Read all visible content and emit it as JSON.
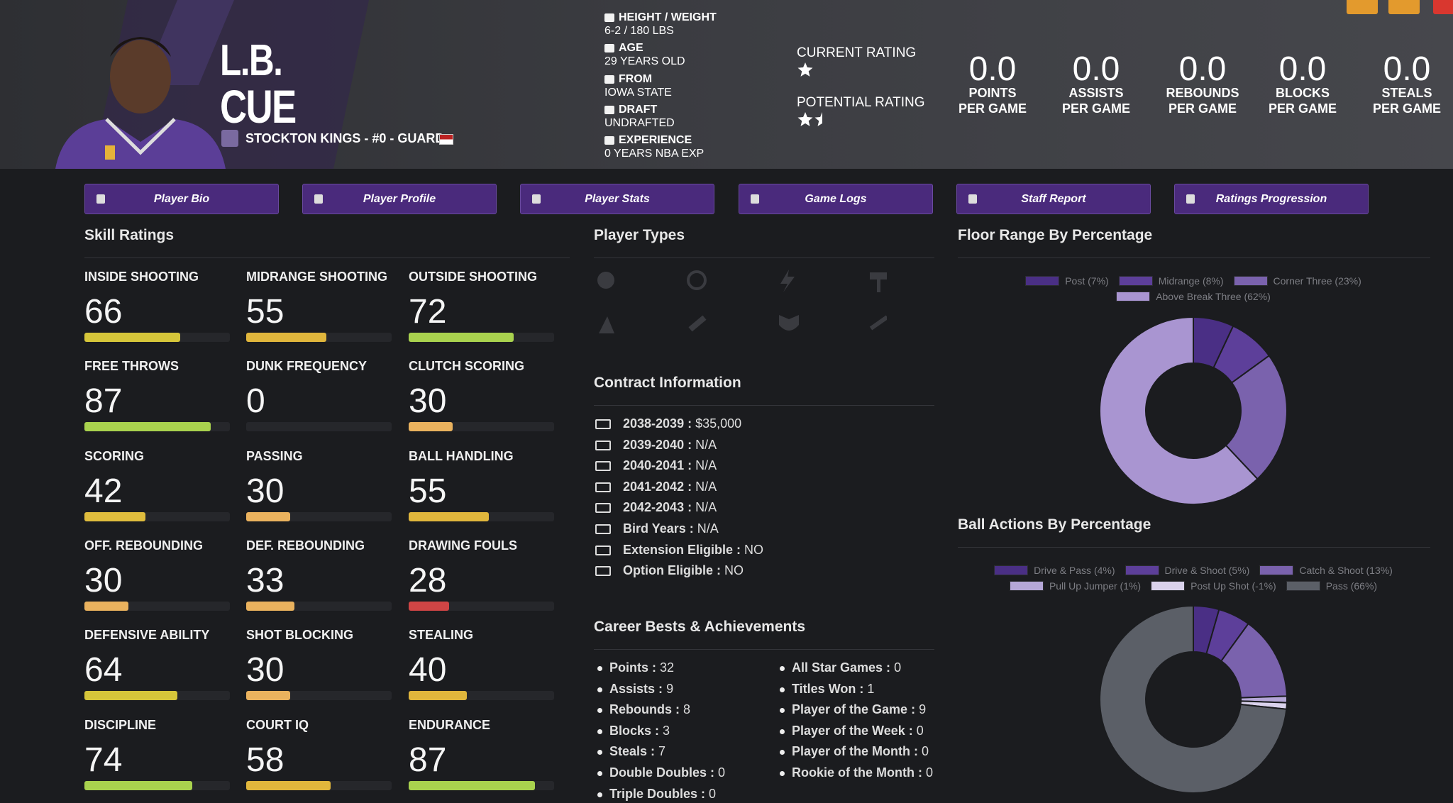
{
  "player": {
    "first_name": "L.B.",
    "last_name": "CUE",
    "team_line": "STOCKTON KINGS - #0 - GUARD",
    "info": [
      {
        "label": "HEIGHT / WEIGHT",
        "value": "6-2 / 180 LBS"
      },
      {
        "label": "AGE",
        "value": "29 YEARS OLD"
      },
      {
        "label": "FROM",
        "value": "IOWA STATE"
      },
      {
        "label": "DRAFT",
        "value": "UNDRAFTED"
      },
      {
        "label": "EXPERIENCE",
        "value": "0 YEARS NBA EXP"
      }
    ],
    "current_rating_label": "CURRENT RATING",
    "current_rating_stars": 1,
    "potential_rating_label": "POTENTIAL RATING",
    "potential_rating_stars": 1.5,
    "stats": [
      {
        "value": "0.0",
        "label_1": "POINTS",
        "label_2": "PER GAME"
      },
      {
        "value": "0.0",
        "label_1": "ASSISTS",
        "label_2": "PER GAME"
      },
      {
        "value": "0.0",
        "label_1": "REBOUNDS",
        "label_2": "PER GAME"
      },
      {
        "value": "0.0",
        "label_1": "BLOCKS",
        "label_2": "PER GAME"
      },
      {
        "value": "0.0",
        "label_1": "STEALS",
        "label_2": "PER GAME"
      }
    ]
  },
  "nav": [
    "Player Bio",
    "Player Profile",
    "Player Stats",
    "Game Logs",
    "Staff Report",
    "Ratings Progression"
  ],
  "skill_ratings": {
    "title": "Skill Ratings",
    "scale_max": 100,
    "items": [
      {
        "label": "INSIDE SHOOTING",
        "value": 66,
        "color": "#d6c63a"
      },
      {
        "label": "MIDRANGE SHOOTING",
        "value": 55,
        "color": "#e0b63c"
      },
      {
        "label": "OUTSIDE SHOOTING",
        "value": 72,
        "color": "#a9d24e"
      },
      {
        "label": "FREE THROWS",
        "value": 87,
        "color": "#a9d24e"
      },
      {
        "label": "DUNK FREQUENCY",
        "value": 0,
        "color": "#d04545"
      },
      {
        "label": "CLUTCH SCORING",
        "value": 30,
        "color": "#eab25e"
      },
      {
        "label": "SCORING",
        "value": 42,
        "color": "#dfbc3d"
      },
      {
        "label": "PASSING",
        "value": 30,
        "color": "#eab25e"
      },
      {
        "label": "BALL HANDLING",
        "value": 55,
        "color": "#e0b63c"
      },
      {
        "label": "OFF. REBOUNDING",
        "value": 30,
        "color": "#eab25e"
      },
      {
        "label": "DEF. REBOUNDING",
        "value": 33,
        "color": "#eab25e"
      },
      {
        "label": "DRAWING FOULS",
        "value": 28,
        "color": "#d04545"
      },
      {
        "label": "DEFENSIVE ABILITY",
        "value": 64,
        "color": "#d6c63a"
      },
      {
        "label": "SHOT BLOCKING",
        "value": 30,
        "color": "#eab25e"
      },
      {
        "label": "STEALING",
        "value": 40,
        "color": "#e0b63c"
      },
      {
        "label": "DISCIPLINE",
        "value": 74,
        "color": "#a9d24e"
      },
      {
        "label": "COURT IQ",
        "value": 58,
        "color": "#e0b63c"
      },
      {
        "label": "ENDURANCE",
        "value": 87,
        "color": "#a9d24e"
      }
    ]
  },
  "player_types": {
    "title": "Player Types"
  },
  "contract": {
    "title": "Contract Information",
    "rows": [
      {
        "label": "2038-2039 :",
        "value": "$35,000"
      },
      {
        "label": "2039-2040 :",
        "value": "N/A"
      },
      {
        "label": "2040-2041 :",
        "value": "N/A"
      },
      {
        "label": "2041-2042 :",
        "value": "N/A"
      },
      {
        "label": "2042-2043 :",
        "value": "N/A"
      },
      {
        "label": "Bird Years :",
        "value": "N/A"
      },
      {
        "label": "Extension Eligible :",
        "value": "NO"
      },
      {
        "label": "Option Eligible :",
        "value": "NO"
      }
    ]
  },
  "career": {
    "title": "Career Bests & Achievements",
    "left": [
      {
        "label": "Points :",
        "value": 32
      },
      {
        "label": "Assists :",
        "value": 9
      },
      {
        "label": "Rebounds :",
        "value": 8
      },
      {
        "label": "Blocks :",
        "value": 3
      },
      {
        "label": "Steals :",
        "value": 7
      },
      {
        "label": "Double Doubles :",
        "value": 0
      },
      {
        "label": "Triple Doubles :",
        "value": 0
      }
    ],
    "right": [
      {
        "label": "All Star Games :",
        "value": 0
      },
      {
        "label": "Titles Won :",
        "value": 1
      },
      {
        "label": "Player of the Game :",
        "value": 9
      },
      {
        "label": "Player of the Week :",
        "value": 0
      },
      {
        "label": "Player of the Month :",
        "value": 0
      },
      {
        "label": "Rookie of the Month :",
        "value": 0
      }
    ]
  },
  "charts": [
    {
      "type": "pie",
      "title": "Floor Range By Percentage",
      "labels": [
        "Post (7%)",
        "Midrange (8%)",
        "Corner Three (23%)",
        "Above Break Three (62%)"
      ],
      "values": [
        7,
        8,
        23,
        62
      ],
      "colors": [
        "#4a2f85",
        "#5d3f9a",
        "#7a62ad",
        "#a995d1"
      ]
    },
    {
      "type": "pie",
      "title": "Ball Actions By Percentage",
      "labels": [
        "Drive & Pass (4%)",
        "Drive & Shoot (5%)",
        "Catch & Shoot (13%)",
        "Pull Up Jumper (1%)",
        "Post Up Shot (-1%)",
        "Pass (66%)"
      ],
      "values": [
        4,
        5,
        13,
        1,
        -1,
        66
      ],
      "colors": [
        "#4a2f85",
        "#5d3f9a",
        "#7a62ad",
        "#b5a7d7",
        "#dad2ec",
        "#5b5f67"
      ]
    }
  ]
}
